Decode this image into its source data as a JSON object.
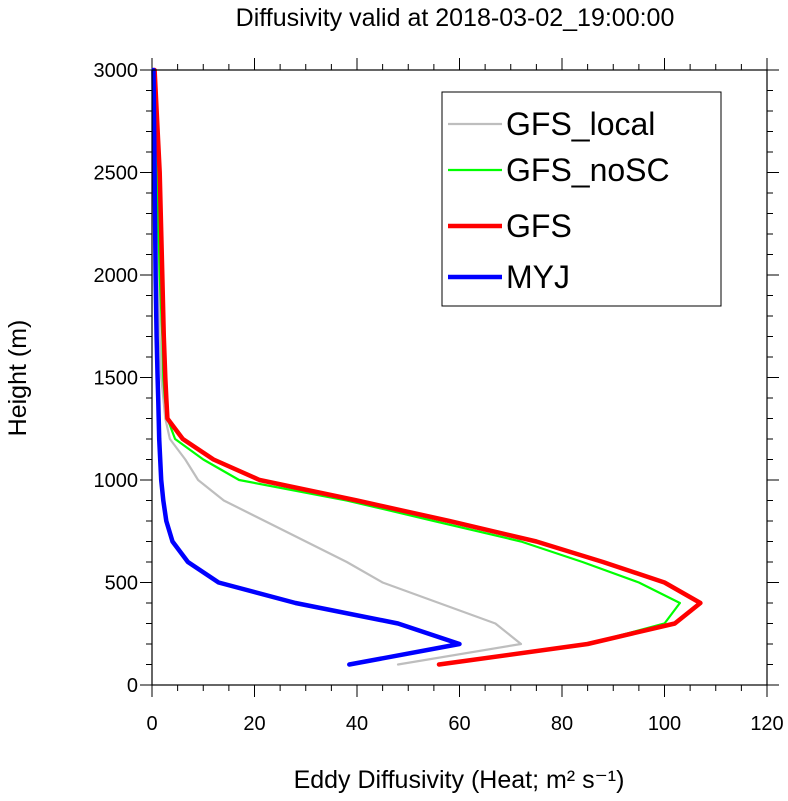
{
  "chart_data": {
    "type": "line",
    "title": "Diffusivity valid at 2018-03-02_19:00:00",
    "xlabel": "Eddy Diffusivity (Heat; m² s⁻¹)",
    "ylabel": "Height (m)",
    "xlim": [
      0,
      120
    ],
    "ylim": [
      0,
      3000
    ],
    "xticks": [
      0,
      20,
      40,
      60,
      80,
      100,
      120
    ],
    "yticks": [
      0,
      500,
      1000,
      1500,
      2000,
      2500,
      3000
    ],
    "grid": false,
    "legend_position": "top-right",
    "series": [
      {
        "name": "GFS_local",
        "color": "#bebebe",
        "width": "thin",
        "points": [
          [
            48,
            100
          ],
          [
            72,
            200
          ],
          [
            67,
            300
          ],
          [
            56,
            400
          ],
          [
            45,
            500
          ],
          [
            38,
            600
          ],
          [
            30,
            700
          ],
          [
            22,
            800
          ],
          [
            14,
            900
          ],
          [
            9,
            1000
          ],
          [
            6.5,
            1100
          ],
          [
            3.5,
            1200
          ],
          [
            2.6,
            1300
          ],
          [
            2.2,
            1400
          ],
          [
            1.8,
            1500
          ],
          [
            1.5,
            1700
          ],
          [
            1.2,
            2000
          ],
          [
            0.8,
            2500
          ],
          [
            0.4,
            3000
          ]
        ]
      },
      {
        "name": "GFS_noSC",
        "color": "#00ff00",
        "width": "thin",
        "points": [
          [
            56,
            100
          ],
          [
            85,
            200
          ],
          [
            100,
            300
          ],
          [
            103,
            400
          ],
          [
            95,
            500
          ],
          [
            84,
            600
          ],
          [
            72,
            700
          ],
          [
            55,
            800
          ],
          [
            38,
            900
          ],
          [
            17,
            1000
          ],
          [
            10,
            1100
          ],
          [
            4.5,
            1200
          ],
          [
            3,
            1300
          ],
          [
            2.5,
            1400
          ],
          [
            2.2,
            1500
          ],
          [
            2,
            1700
          ],
          [
            1.5,
            2000
          ],
          [
            1,
            2500
          ],
          [
            0.5,
            3000
          ]
        ]
      },
      {
        "name": "GFS",
        "color": "#ff0000",
        "width": "thick",
        "points": [
          [
            56,
            100
          ],
          [
            85,
            200
          ],
          [
            102,
            300
          ],
          [
            107,
            400
          ],
          [
            100,
            500
          ],
          [
            88,
            600
          ],
          [
            75,
            700
          ],
          [
            58,
            800
          ],
          [
            40,
            900
          ],
          [
            21,
            1000
          ],
          [
            12,
            1100
          ],
          [
            6,
            1200
          ],
          [
            3,
            1300
          ],
          [
            2.8,
            1400
          ],
          [
            2.6,
            1500
          ],
          [
            2.3,
            1700
          ],
          [
            2,
            2000
          ],
          [
            1.5,
            2500
          ],
          [
            0.5,
            3000
          ]
        ]
      },
      {
        "name": "MYJ",
        "color": "#0000ff",
        "width": "thick",
        "points": [
          [
            38.5,
            100
          ],
          [
            60,
            200
          ],
          [
            48,
            300
          ],
          [
            28,
            400
          ],
          [
            13,
            500
          ],
          [
            7,
            600
          ],
          [
            4,
            700
          ],
          [
            2.8,
            800
          ],
          [
            2.2,
            900
          ],
          [
            1.8,
            1000
          ],
          [
            1.6,
            1100
          ],
          [
            1.4,
            1200
          ],
          [
            1.3,
            1300
          ],
          [
            1.2,
            1400
          ],
          [
            1.1,
            1500
          ],
          [
            0.9,
            1700
          ],
          [
            0.7,
            2000
          ],
          [
            0.5,
            2500
          ],
          [
            0.3,
            3000
          ]
        ]
      }
    ]
  }
}
